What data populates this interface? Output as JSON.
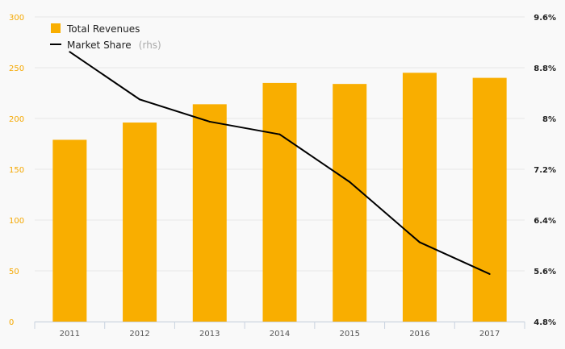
{
  "chart_data": {
    "type": "bar",
    "categories": [
      "2011",
      "2012",
      "2013",
      "2014",
      "2015",
      "2016",
      "2017"
    ],
    "series": [
      {
        "name": "Total Revenues",
        "type": "bar",
        "axis": "left",
        "color": "#f9ae00",
        "values": [
          179,
          196,
          214,
          235,
          234,
          245,
          240
        ]
      },
      {
        "name": "Market Share",
        "name_suffix": "(rhs)",
        "type": "line",
        "axis": "right",
        "color": "#000000",
        "values": [
          9.05,
          8.3,
          7.95,
          7.75,
          7.0,
          6.05,
          5.55
        ]
      }
    ],
    "ylim": [
      0,
      300
    ],
    "yticks": [
      "0",
      "50",
      "100",
      "150",
      "200",
      "250",
      "300"
    ],
    "y2lim": [
      4.8,
      9.6
    ],
    "y2ticks": [
      "4.8%",
      "5.6%",
      "6.4%",
      "7.2%",
      "8%",
      "8.8%",
      "9.6%"
    ],
    "grid": true,
    "legend_position": "top-left"
  }
}
